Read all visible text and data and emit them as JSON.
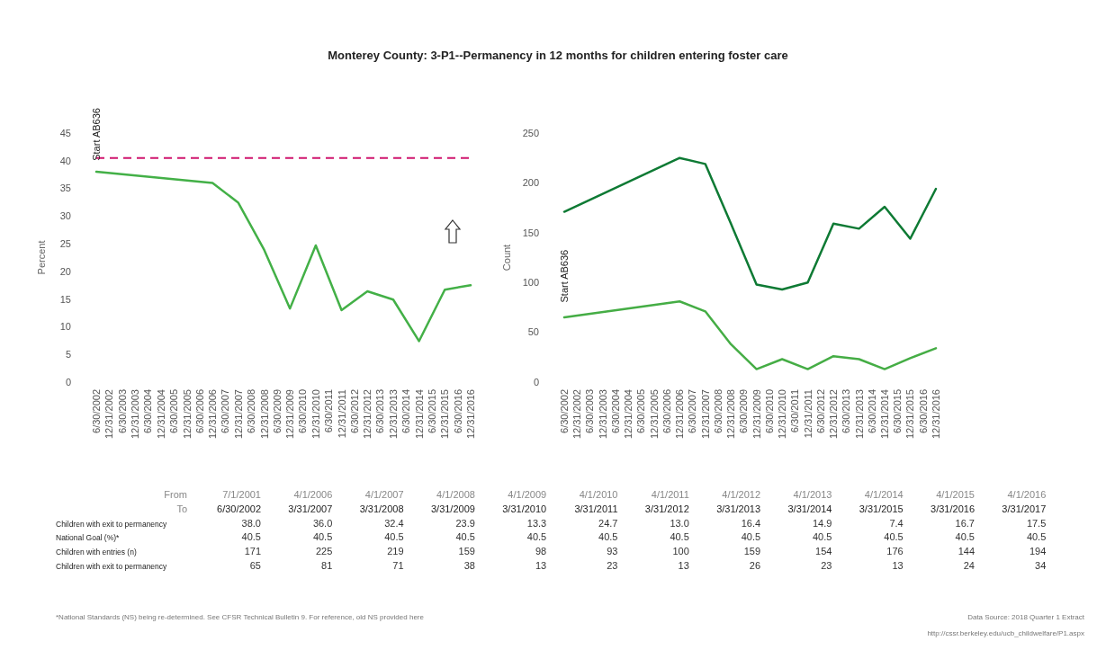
{
  "chart_data": [
    {
      "type": "line",
      "title": "Monterey County: 3-P1--Permanency in 12 months for children entering foster care",
      "ylabel": "Percent",
      "x": [
        "2002-06-30",
        "2006-12-31",
        "2007-12-31",
        "2008-12-31",
        "2009-12-31",
        "2010-12-31",
        "2011-12-31",
        "2012-12-31",
        "2013-12-31",
        "2014-12-31",
        "2015-12-31",
        "2016-12-31"
      ],
      "series": [
        {
          "color": "#43b047",
          "values": [
            38.0,
            36.0,
            32.4,
            23.9,
            13.3,
            24.7,
            13.0,
            16.4,
            14.9,
            7.4,
            16.7,
            17.5
          ]
        }
      ],
      "ref_lines": [
        {
          "axis": "y",
          "value": 40.5,
          "color": "#d0166e",
          "line_style": "dashed"
        }
      ],
      "annotations": [
        {
          "text": "Start AB636",
          "x": "2002-06-30",
          "y": 40
        }
      ],
      "xlim": [
        "2002-06-30",
        "2016-12-31"
      ],
      "xticks": [
        {
          "value": "2002-06-30",
          "label": "6/30/2002"
        },
        {
          "value": "2002-12-31",
          "label": "12/31/2002"
        },
        {
          "value": "2003-06-30",
          "label": "6/30/2003"
        },
        {
          "value": "2003-12-31",
          "label": "12/31/2003"
        },
        {
          "value": "2004-06-30",
          "label": "6/30/2004"
        },
        {
          "value": "2004-12-31",
          "label": "12/31/2004"
        },
        {
          "value": "2005-06-30",
          "label": "6/30/2005"
        },
        {
          "value": "2005-12-31",
          "label": "12/31/2005"
        },
        {
          "value": "2006-06-30",
          "label": "6/30/2006"
        },
        {
          "value": "2006-12-31",
          "label": "12/31/2006"
        },
        {
          "value": "2007-06-30",
          "label": "6/30/2007"
        },
        {
          "value": "2007-12-31",
          "label": "12/31/2007"
        },
        {
          "value": "2008-06-30",
          "label": "6/30/2008"
        },
        {
          "value": "2008-12-31",
          "label": "12/31/2008"
        },
        {
          "value": "2009-06-30",
          "label": "6/30/2009"
        },
        {
          "value": "2009-12-31",
          "label": "12/31/2009"
        },
        {
          "value": "2010-06-30",
          "label": "6/30/2010"
        },
        {
          "value": "2010-12-31",
          "label": "12/31/2010"
        },
        {
          "value": "2011-06-30",
          "label": "6/30/2011"
        },
        {
          "value": "2011-12-31",
          "label": "12/31/2011"
        },
        {
          "value": "2012-06-30",
          "label": "6/30/2012"
        },
        {
          "value": "2012-12-31",
          "label": "12/31/2012"
        },
        {
          "value": "2013-06-30",
          "label": "6/30/2013"
        },
        {
          "value": "2013-12-31",
          "label": "12/31/2013"
        },
        {
          "value": "2014-06-30",
          "label": "6/30/2014"
        },
        {
          "value": "2014-12-31",
          "label": "12/31/2014"
        },
        {
          "value": "2015-06-30",
          "label": "6/30/2015"
        },
        {
          "value": "2015-12-31",
          "label": "12/31/2015"
        },
        {
          "value": "2016-06-30",
          "label": "6/30/2016"
        },
        {
          "value": "2016-12-31",
          "label": "12/31/2016"
        }
      ],
      "ylim": [
        0,
        45
      ],
      "yticks": [
        0,
        5,
        10,
        15,
        20,
        25,
        30,
        35,
        40,
        45
      ],
      "line_style": "solid",
      "marker": "none",
      "grid": false
    },
    {
      "type": "line",
      "ylabel": "Count",
      "x": [
        "2002-06-30",
        "2006-12-31",
        "2007-12-31",
        "2008-12-31",
        "2009-12-31",
        "2010-12-31",
        "2011-12-31",
        "2012-12-31",
        "2013-12-31",
        "2014-12-31",
        "2015-12-31",
        "2016-12-31"
      ],
      "series": [
        {
          "color": "#0e7a34",
          "values": [
            171,
            225,
            219,
            159,
            98,
            93,
            100,
            159,
            154,
            176,
            144,
            194
          ]
        },
        {
          "color": "#45ad45",
          "values": [
            65,
            81,
            71,
            38,
            13,
            23,
            13,
            26,
            23,
            13,
            24,
            34
          ]
        }
      ],
      "annotations": [
        "Start AB636"
      ],
      "xlim": [
        "2002-06-30",
        "2016-12-31"
      ],
      "xticks": [
        {
          "value": "2002-06-30",
          "label": "6/30/2002"
        },
        {
          "value": "2002-12-31",
          "label": "12/31/2002"
        },
        {
          "value": "2003-06-30",
          "label": "6/30/2003"
        },
        {
          "value": "2003-12-31",
          "label": "12/31/2003"
        },
        {
          "value": "2004-06-30",
          "label": "6/30/2004"
        },
        {
          "value": "2004-12-31",
          "label": "12/31/2004"
        },
        {
          "value": "2005-06-30",
          "label": "6/30/2005"
        },
        {
          "value": "2005-12-31",
          "label": "12/31/2005"
        },
        {
          "value": "2006-06-30",
          "label": "6/30/2006"
        },
        {
          "value": "2006-12-31",
          "label": "12/31/2006"
        },
        {
          "value": "2007-06-30",
          "label": "6/30/2007"
        },
        {
          "value": "2007-12-31",
          "label": "12/31/2007"
        },
        {
          "value": "2008-06-30",
          "label": "6/30/2008"
        },
        {
          "value": "2008-12-31",
          "label": "12/31/2008"
        },
        {
          "value": "2009-06-30",
          "label": "6/30/2009"
        },
        {
          "value": "2009-12-31",
          "label": "12/31/2009"
        },
        {
          "value": "2010-06-30",
          "label": "6/30/2010"
        },
        {
          "value": "2010-12-31",
          "label": "12/31/2010"
        },
        {
          "value": "2011-06-30",
          "label": "6/30/2011"
        },
        {
          "value": "2011-12-31",
          "label": "12/31/2011"
        },
        {
          "value": "2012-06-30",
          "label": "6/30/2012"
        },
        {
          "value": "2012-12-31",
          "label": "12/31/2012"
        },
        {
          "value": "2013-06-30",
          "label": "6/30/2013"
        },
        {
          "value": "2013-12-31",
          "label": "12/31/2013"
        },
        {
          "value": "2014-06-30",
          "label": "6/30/2014"
        },
        {
          "value": "2014-12-31",
          "label": "12/31/2014"
        },
        {
          "value": "2015-06-30",
          "label": "6/30/2015"
        },
        {
          "value": "2015-12-31",
          "label": "12/31/2015"
        },
        {
          "value": "2016-06-30",
          "label": "6/30/2016"
        },
        {
          "value": "2016-12-31",
          "label": "12/31/2016"
        }
      ],
      "ylim": [
        0,
        250
      ],
      "yticks": [
        0,
        50,
        100,
        150,
        200,
        250
      ],
      "line_style": "solid",
      "marker": "none",
      "grid": false
    },
    {
      "type": "other",
      "data_labels": true,
      "categories": [
        "6/30/2002",
        "3/31/2007",
        "3/31/2008",
        "3/31/2009",
        "3/31/2010",
        "3/31/2011",
        "3/31/2012",
        "3/31/2013",
        "3/31/2014",
        "3/31/2015",
        "3/31/2016",
        "3/31/2017"
      ],
      "series": [
        {
          "name": "Children with exit to permanency",
          "values": [
            38.0,
            36.0,
            32.4,
            23.9,
            13.3,
            24.7,
            13.0,
            16.4,
            14.9,
            7.4,
            16.7,
            17.5
          ],
          "value_labels": [
            "38.0",
            "36.0",
            "32.4",
            "23.9",
            "13.3",
            "24.7",
            "13.0",
            "16.4",
            "14.9",
            "7.4",
            "16.7",
            "17.5"
          ]
        },
        {
          "name": "National Goal (%)*",
          "values": [
            40.5,
            40.5,
            40.5,
            40.5,
            40.5,
            40.5,
            40.5,
            40.5,
            40.5,
            40.5,
            40.5,
            40.5
          ]
        },
        {
          "name": "Children with entries (n)",
          "values": [
            171,
            225,
            219,
            159,
            98,
            93,
            100,
            159,
            154,
            176,
            144,
            194
          ]
        },
        {
          "name": "Children with exit to permanency",
          "values": [
            65,
            81,
            71,
            38,
            13,
            23,
            13,
            26,
            23,
            13,
            24,
            34
          ]
        }
      ],
      "annotations": [
        "From",
        "To",
        "7/1/2001",
        "4/1/2006",
        "4/1/2007",
        "4/1/2008",
        "4/1/2009",
        "4/1/2010",
        "4/1/2011",
        "4/1/2012",
        "4/1/2013",
        "4/1/2014",
        "4/1/2015",
        "4/1/2016",
        "*National Standards (NS) being re-determined. See CFSR Technical Bulletin 9. For reference, old NS provided here",
        "Data Source: 2018 Quarter 1 Extract",
        "http://cssr.berkeley.edu/ucb_childwelfare/P1.aspx"
      ]
    }
  ]
}
